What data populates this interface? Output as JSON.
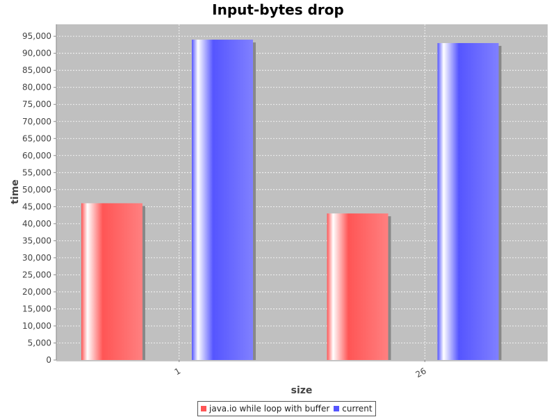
{
  "chart_data": {
    "type": "bar",
    "title": "Input-bytes drop",
    "xlabel": "size",
    "ylabel": "time",
    "categories": [
      "1",
      "26"
    ],
    "series": [
      {
        "name": "java.io while loop with buffer",
        "color": "#ff5555",
        "values": [
          46000,
          43000
        ]
      },
      {
        "name": "current",
        "color": "#5555ff",
        "values": [
          94000,
          93000
        ]
      }
    ],
    "ylim": [
      0,
      98500
    ],
    "yticks": [
      0,
      5000,
      10000,
      15000,
      20000,
      25000,
      30000,
      35000,
      40000,
      45000,
      50000,
      55000,
      60000,
      65000,
      70000,
      75000,
      80000,
      85000,
      90000,
      95000
    ],
    "ytick_labels": [
      "0",
      "5,000",
      "10,000",
      "15,000",
      "20,000",
      "25,000",
      "30,000",
      "35,000",
      "40,000",
      "45,000",
      "50,000",
      "55,000",
      "60,000",
      "65,000",
      "70,000",
      "75,000",
      "80,000",
      "85,000",
      "90,000",
      "95,000"
    ],
    "grid": true,
    "legend_position": "bottom",
    "plot_background": "#c0c0c0"
  }
}
